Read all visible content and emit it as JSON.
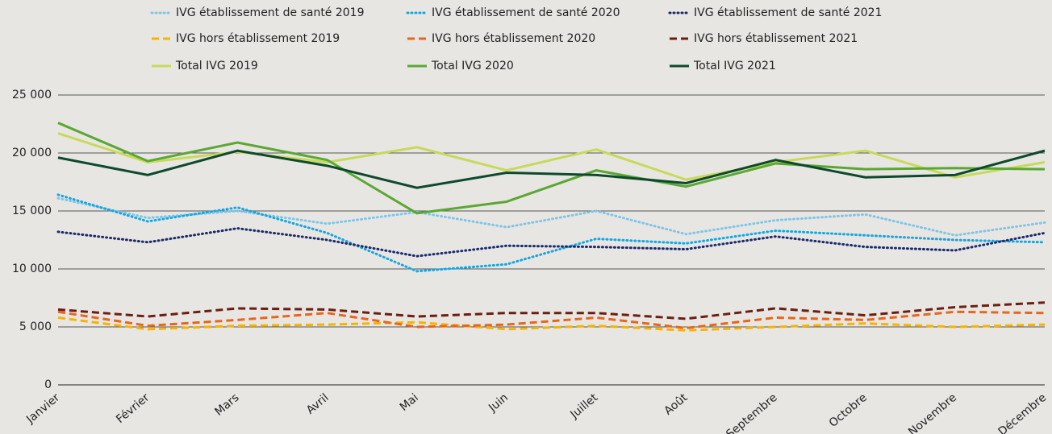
{
  "chart_data": {
    "type": "line",
    "categories": [
      "Janvier",
      "Février",
      "Mars",
      "Avril",
      "Mai",
      "Juin",
      "Juillet",
      "Août",
      "Septembre",
      "Octobre",
      "Novembre",
      "Décembre"
    ],
    "ylim": [
      0,
      25000
    ],
    "yticks": [
      0,
      {
        "value": 5000,
        "label": "5 000"
      },
      {
        "value": 10000,
        "label": "10 000"
      },
      {
        "value": 15000,
        "label": "15 000"
      },
      {
        "value": 20000,
        "label": "20 000"
      },
      {
        "value": 25000,
        "label": "25 000"
      }
    ],
    "grid": true,
    "legend": "top",
    "series": [
      {
        "name": "IVG établissement de santé 2019",
        "color": "#7fc6e6",
        "dash": "dotted",
        "values": [
          16100,
          14400,
          15000,
          13900,
          14900,
          13600,
          15000,
          13000,
          14200,
          14700,
          12900,
          14000
        ]
      },
      {
        "name": "IVG établissement de santé 2020",
        "color": "#16a6e0",
        "dash": "dotted",
        "values": [
          16400,
          14100,
          15300,
          13100,
          9800,
          10400,
          12600,
          12200,
          13300,
          12900,
          12500,
          12300
        ]
      },
      {
        "name": "IVG établissement de santé 2021",
        "color": "#1b2a6b",
        "dash": "dotted",
        "values": [
          13200,
          12300,
          13500,
          12500,
          11100,
          12000,
          11900,
          11700,
          12800,
          11900,
          11600,
          13100
        ]
      },
      {
        "name": "IVG hors établissement 2019",
        "color": "#f5b400",
        "dash": "dashed",
        "values": [
          5800,
          4800,
          5100,
          5200,
          5400,
          4800,
          5100,
          4700,
          5000,
          5300,
          5000,
          5200
        ]
      },
      {
        "name": "IVG hors établissement 2020",
        "color": "#e8651a",
        "dash": "dashed",
        "values": [
          6300,
          5100,
          5600,
          6200,
          5000,
          5200,
          5800,
          4900,
          5800,
          5600,
          6300,
          6200
        ]
      },
      {
        "name": "IVG hors établissement 2021",
        "color": "#6b1e10",
        "dash": "dashed",
        "values": [
          6500,
          5900,
          6600,
          6500,
          5900,
          6200,
          6200,
          5700,
          6600,
          6000,
          6700,
          7100
        ]
      },
      {
        "name": "Total IVG 2019",
        "color": "#c8d95a",
        "dash": "solid",
        "values": [
          21700,
          19200,
          20100,
          19200,
          20500,
          18500,
          20300,
          17700,
          19200,
          20200,
          17900,
          19200
        ]
      },
      {
        "name": "Total IVG 2020",
        "color": "#5aa832",
        "dash": "solid",
        "values": [
          22600,
          19300,
          20900,
          19400,
          14800,
          15800,
          18500,
          17100,
          19100,
          18600,
          18700,
          18600
        ]
      },
      {
        "name": "Total IVG 2021",
        "color": "#0d4a2c",
        "dash": "solid",
        "values": [
          19600,
          18100,
          20200,
          18900,
          17000,
          18300,
          18100,
          17400,
          19400,
          17900,
          18100,
          20200
        ]
      }
    ]
  }
}
